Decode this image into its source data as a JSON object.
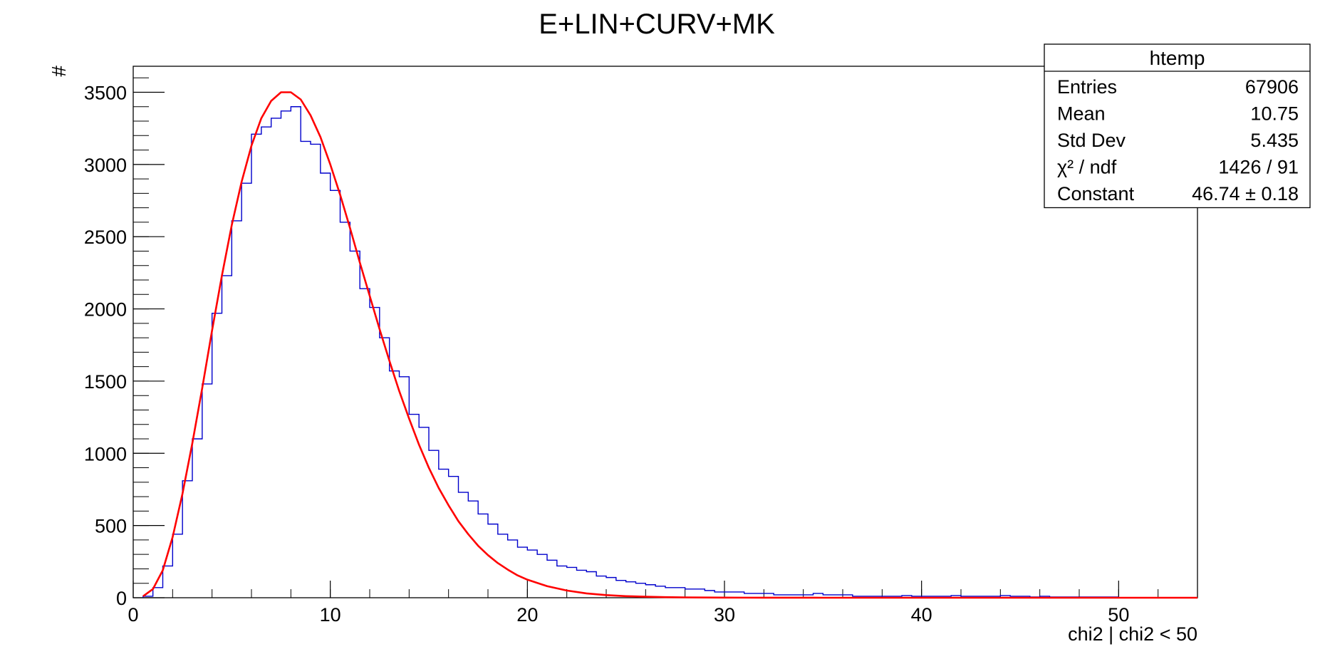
{
  "chart_data": {
    "type": "bar",
    "title": "E+LIN+CURV+MK",
    "xlabel": "chi2 | chi2 < 50",
    "ylabel": "#",
    "xlim": [
      0,
      54
    ],
    "ylim": [
      0,
      3680
    ],
    "x_ticks": [
      0,
      10,
      20,
      30,
      40,
      50
    ],
    "y_ticks": [
      0,
      500,
      1000,
      1500,
      2000,
      2500,
      3000,
      3500
    ],
    "bin_width": 0.5,
    "grid": false,
    "series": [
      {
        "kind": "histogram",
        "color": "#0000cc",
        "bin_low_edges": [
          0.5,
          1,
          1.5,
          2,
          2.5,
          3,
          3.5,
          4,
          4.5,
          5,
          5.5,
          6,
          6.5,
          7,
          7.5,
          8,
          8.5,
          9,
          9.5,
          10,
          10.5,
          11,
          11.5,
          12,
          12.5,
          13,
          13.5,
          14,
          14.5,
          15,
          15.5,
          16,
          16.5,
          17,
          17.5,
          18,
          18.5,
          19,
          19.5,
          20,
          20.5,
          21,
          21.5,
          22,
          22.5,
          23,
          23.5,
          24,
          24.5,
          25,
          25.5,
          26,
          26.5,
          27,
          27.5,
          28,
          28.5,
          29,
          29.5,
          30,
          30.5,
          31,
          31.5,
          32,
          32.5,
          33,
          33.5,
          34,
          34.5,
          35,
          35.5,
          36,
          36.5,
          37,
          37.5,
          38,
          38.5,
          39,
          39.5,
          40,
          40.5,
          41,
          41.5,
          42,
          42.5,
          43,
          43.5,
          44,
          44.5,
          45,
          45.5,
          46,
          46.5,
          47,
          47.5,
          48,
          48.5,
          49,
          49.5
        ],
        "values": [
          10,
          70,
          220,
          440,
          810,
          1100,
          1480,
          1970,
          2230,
          2610,
          2870,
          3210,
          3260,
          3320,
          3370,
          3400,
          3160,
          3140,
          2940,
          2820,
          2600,
          2400,
          2140,
          2010,
          1800,
          1570,
          1530,
          1270,
          1180,
          1020,
          890,
          840,
          730,
          670,
          580,
          510,
          440,
          400,
          350,
          330,
          300,
          260,
          220,
          210,
          190,
          180,
          150,
          140,
          120,
          110,
          100,
          90,
          80,
          70,
          70,
          60,
          60,
          50,
          40,
          40,
          40,
          30,
          30,
          30,
          20,
          20,
          20,
          20,
          30,
          20,
          20,
          20,
          10,
          10,
          10,
          10,
          10,
          15,
          10,
          10,
          10,
          10,
          15,
          10,
          10,
          10,
          10,
          15,
          10,
          10,
          5,
          10,
          5,
          5,
          5,
          5,
          5,
          5,
          5
        ]
      },
      {
        "kind": "fit-curve",
        "color": "#ff0000",
        "curve_x": [
          0.5,
          1,
          1.5,
          2,
          2.5,
          3,
          3.5,
          4,
          4.5,
          5,
          5.5,
          6,
          6.5,
          7,
          7.5,
          8,
          8.5,
          9,
          9.5,
          10,
          10.5,
          11,
          11.5,
          12,
          12.5,
          13,
          13.5,
          14,
          14.5,
          15,
          15.5,
          16,
          16.5,
          17,
          17.5,
          18,
          18.5,
          19,
          19.5,
          20,
          21,
          22,
          23,
          24,
          25,
          26,
          27,
          28,
          29,
          30,
          31,
          32,
          33,
          34,
          35,
          36,
          38,
          40,
          42,
          44,
          46,
          48,
          50,
          52,
          54
        ],
        "curve_y": [
          10,
          60,
          190,
          420,
          720,
          1070,
          1450,
          1850,
          2230,
          2580,
          2880,
          3130,
          3320,
          3440,
          3500,
          3500,
          3450,
          3340,
          3190,
          3000,
          2790,
          2560,
          2320,
          2090,
          1860,
          1640,
          1430,
          1240,
          1060,
          900,
          760,
          640,
          530,
          440,
          360,
          295,
          240,
          195,
          155,
          125,
          80,
          50,
          30,
          18,
          11,
          7,
          4,
          2.5,
          1.5,
          1,
          0.6,
          0.4,
          0.2,
          0.1,
          0.05,
          0,
          0,
          0,
          0,
          0,
          0,
          0,
          0,
          0,
          0
        ]
      }
    ],
    "stats_box": {
      "title": "htemp",
      "rows": [
        {
          "label": "Entries",
          "value": "67906"
        },
        {
          "label": "Mean",
          "value": "10.75"
        },
        {
          "label": "Std Dev",
          "value": "5.435"
        },
        {
          "label": "χ² / ndf",
          "value": "1426 / 91"
        },
        {
          "label": "Constant",
          "value": "46.74 ± 0.18"
        }
      ]
    }
  }
}
